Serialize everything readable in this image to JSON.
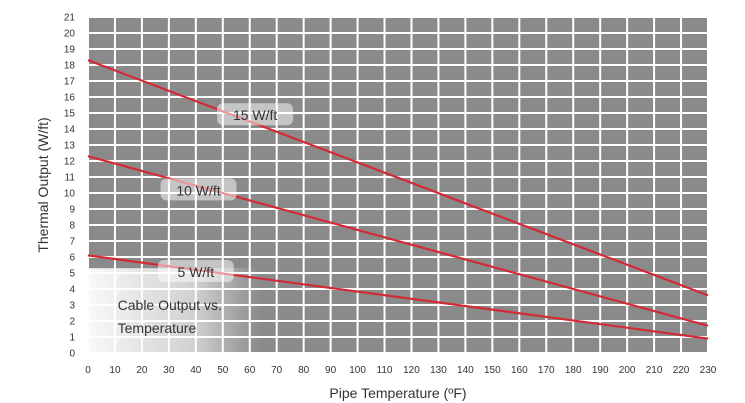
{
  "chart_data": {
    "type": "line",
    "title": "Cable Output vs. Temperature",
    "title_lines": [
      "Cable Output vs.",
      "Temperature"
    ],
    "xlabel": "Pipe Temperature (ºF)",
    "ylabel": "Thermal Output (W/ft)",
    "xlim": [
      0,
      230
    ],
    "ylim": [
      0,
      21
    ],
    "xticks": [
      "0",
      "10",
      "20",
      "30",
      "40",
      "50",
      "60",
      "70",
      "80",
      "90",
      "100",
      "110",
      "120",
      "130",
      "140",
      "150",
      "160",
      "170",
      "180",
      "190",
      "200",
      "210",
      "220",
      "230"
    ],
    "yticks": [
      "0",
      "1",
      "2",
      "3",
      "4",
      "5",
      "6",
      "7",
      "8",
      "9",
      "10",
      "11",
      "12",
      "13",
      "14",
      "15",
      "16",
      "17",
      "18",
      "19",
      "20",
      "21"
    ],
    "grid": true,
    "series": [
      {
        "name": "15 W/ft",
        "x": [
          0,
          230
        ],
        "values": [
          18.3,
          3.6
        ]
      },
      {
        "name": "10 W/ft",
        "x": [
          0,
          230
        ],
        "values": [
          12.3,
          1.7
        ]
      },
      {
        "name": "5 W/ft",
        "x": [
          0,
          230
        ],
        "values": [
          6.1,
          0.9
        ]
      }
    ],
    "colors": {
      "plot_bg": "#8a8a8a",
      "grid": "#ffffff",
      "line": "#d42a36",
      "text": "#333333"
    }
  }
}
